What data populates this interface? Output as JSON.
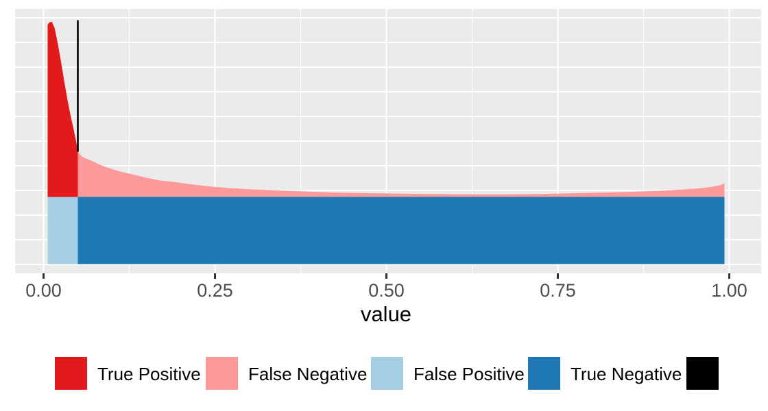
{
  "figure": {
    "x_axis_title": "value"
  },
  "x_axis": {
    "ticks": [
      {
        "label": "0.00",
        "value": 0
      },
      {
        "label": "0.25",
        "value": 0.25
      },
      {
        "label": "0.50",
        "value": 0.5
      },
      {
        "label": "0.75",
        "value": 0.75
      },
      {
        "label": "1.00",
        "value": 1
      }
    ]
  },
  "legend": {
    "items": [
      {
        "key": "true-positive",
        "label": "True Positive",
        "color": "#e31a1c"
      },
      {
        "key": "false-negative",
        "label": "False Negative",
        "color": "#fb9a99"
      },
      {
        "key": "false-positive",
        "label": "False Positive",
        "color": "#a6cee3"
      },
      {
        "key": "true-negative",
        "label": "True Negative",
        "color": "#1f78b4"
      },
      {
        "key": "threshold",
        "label": "",
        "color": "#000000"
      }
    ]
  },
  "style": {
    "panel_bg": "#ebebeb",
    "grid": "#ffffff",
    "tick_text": "#4d4d4d",
    "tick_mark": "#333333",
    "axis_title_color": "#000000"
  },
  "chart_data": {
    "type": "area",
    "subtype": "stacked-density-threshold",
    "xlabel": "value",
    "xlim": [
      0,
      1
    ],
    "x_tick_values": [
      0,
      0.25,
      0.5,
      0.75,
      1
    ],
    "grid": true,
    "legend_position": "bottom",
    "threshold": 0.05,
    "support": [
      0.006,
      0.993
    ],
    "x": [
      0.006,
      0.009,
      0.012,
      0.016,
      0.02,
      0.024,
      0.028,
      0.032,
      0.036,
      0.04,
      0.044,
      0.047,
      0.05,
      0.056,
      0.062,
      0.07,
      0.08,
      0.09,
      0.102,
      0.116,
      0.13,
      0.15,
      0.17,
      0.19,
      0.215,
      0.24,
      0.27,
      0.3,
      0.34,
      0.38,
      0.43,
      0.49,
      0.54,
      0.6,
      0.66,
      0.72,
      0.76,
      0.8,
      0.85,
      0.9,
      0.935,
      0.96,
      0.976,
      0.986,
      0.991,
      0.993
    ],
    "positive_density": [
      252,
      255,
      256,
      247,
      228,
      206,
      182,
      158,
      136,
      116,
      98,
      84,
      66,
      59,
      56,
      53,
      48,
      44,
      40,
      36,
      33,
      28,
      24,
      22,
      18.5,
      15.5,
      13,
      11.2,
      9.5,
      8,
      6.3,
      5.2,
      4.5,
      4,
      3.8,
      4.2,
      5,
      6,
      7.3,
      9,
      11,
      13,
      15,
      17,
      19,
      20
    ],
    "negative_density": 98,
    "density_units": "arbitrary (no y-axis labels shown)",
    "regions": [
      {
        "name": "True Positive",
        "color": "#e31a1c",
        "extent": "positive density, x < threshold"
      },
      {
        "name": "False Negative",
        "color": "#fb9a99",
        "extent": "positive density, x > threshold"
      },
      {
        "name": "False Positive",
        "color": "#a6cee3",
        "extent": "negative density, x < threshold"
      },
      {
        "name": "True Negative",
        "color": "#1f78b4",
        "extent": "negative density, x > threshold"
      }
    ],
    "threshold_line": {
      "x": 0.05,
      "color": "#000000"
    }
  }
}
